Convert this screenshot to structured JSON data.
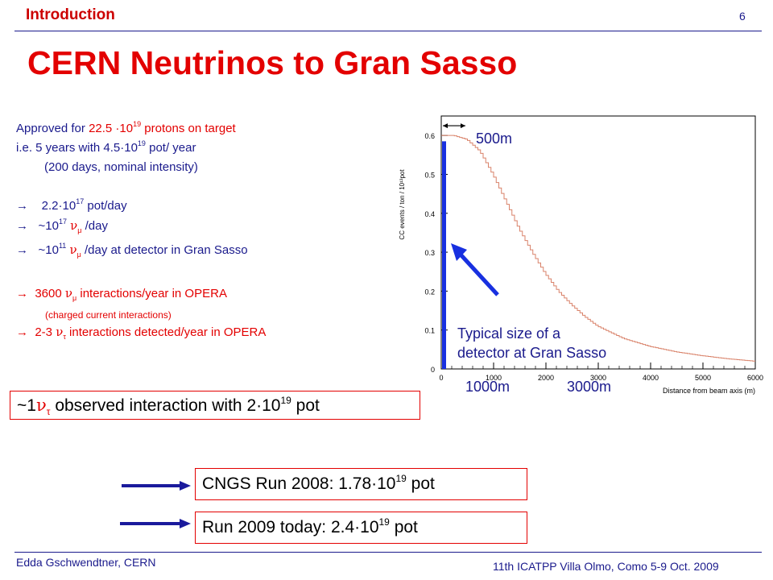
{
  "header": {
    "section": "Introduction",
    "page": "6"
  },
  "title": "CERN Neutrinos to Gran Sasso",
  "text": {
    "l1a": "Approved for ",
    "l1b": "22.5 ·10",
    "l1sup": "19",
    "l1c": " protons on target",
    "l2a": "i.e.  5 years with 4.5·10",
    "l2sup": "19",
    "l2b": " pot/ year",
    "l3": "(200 days, nominal intensity)",
    "arrow": "→",
    "l4a": "2.2·10",
    "l4sup": "17",
    "l4b": " pot/day",
    "l5a": "~10",
    "l5sup": "17",
    "l5nu": "ν",
    "l5sub": "μ",
    "l5b": " /day",
    "l6a": "~10",
    "l6sup": "11",
    "l6nu": "ν",
    "l6sub": "μ",
    "l6b": " /day at detector in Gran Sasso",
    "l7a": "3600 ",
    "l7nu": "ν",
    "l7sub": "μ",
    "l7b": " interactions/year in OPERA",
    "l8": "(charged current interactions)",
    "l9a": "2-3 ",
    "l9nu": "ν",
    "l9sub": "τ",
    "l9b": " interactions detected/year in OPERA"
  },
  "observed_box": {
    "a": "~1",
    "nu": "ν",
    "sub": "τ",
    "b": " observed interaction with 2·10",
    "sup": "19",
    "c": " pot"
  },
  "runs": [
    {
      "a": "CNGS Run 2008:  1.78·10",
      "sup": "19",
      "b": " pot"
    },
    {
      "a": "Run 2009 today:  2.4·10",
      "sup": "19",
      "b": " pot"
    }
  ],
  "plot": {
    "label_500m": "500m",
    "label_1000m": "1000m",
    "label_3000m": "3000m",
    "detector_text_1": "Typical size of a",
    "detector_text_2": "detector at Gran Sasso"
  },
  "chart_data": {
    "type": "line",
    "ylabel": "CC events / ton / 10¹³pot",
    "xlabel": "Distance from beam axis (m)",
    "xlim": [
      0,
      6000
    ],
    "ylim": [
      0,
      0.65
    ],
    "xticks": [
      0,
      1000,
      2000,
      3000,
      4000,
      5000,
      6000
    ],
    "yticks": [
      0,
      0.1,
      0.2,
      0.3,
      0.4,
      0.5,
      0.6
    ],
    "xtick_labels": [
      "0",
      "1000",
      "2000",
      "3000",
      "4000",
      "5000",
      "6000"
    ],
    "ytick_labels": [
      "0",
      "0.1",
      "0.2",
      "0.3",
      "0.4",
      "0.5",
      "0.6"
    ],
    "series": [
      {
        "x": [
          0,
          250,
          500,
          750,
          1000,
          1250,
          1500,
          1750,
          2000,
          2250,
          2500,
          2750,
          3000,
          3500,
          4000,
          4500,
          5000,
          5500,
          6000
        ],
        "y": [
          0.6,
          0.6,
          0.59,
          0.56,
          0.5,
          0.43,
          0.36,
          0.3,
          0.245,
          0.2,
          0.165,
          0.135,
          0.11,
          0.078,
          0.058,
          0.044,
          0.034,
          0.026,
          0.02
        ]
      }
    ],
    "colors": {
      "line": "#d9826a"
    }
  },
  "footer": {
    "left": "Edda Gschwendtner, CERN",
    "right": "11th ICATPP Villa Olmo, Como 5-9 Oct. 2009"
  }
}
